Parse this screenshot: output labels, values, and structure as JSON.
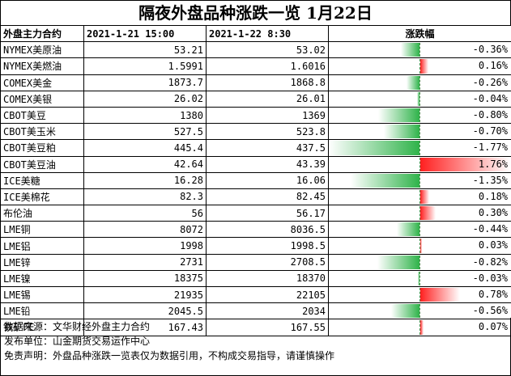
{
  "title": "隔夜外盘品种涨跌一览 1月22日",
  "headers": {
    "name": "外盘主力合约",
    "prev": "2021-1-21 15:00",
    "curr": "2021-1-22 8:30",
    "change": "涨跌幅"
  },
  "colors": {
    "up": "#ff2020",
    "down": "#2fb34a"
  },
  "rows": [
    {
      "name": "NYMEX美原油",
      "prev": "53.21",
      "curr": "53.02",
      "change": "-0.36%",
      "pct": -0.36
    },
    {
      "name": "NYMEX美燃油",
      "prev": "1.5991",
      "curr": "1.6016",
      "change": "0.16%",
      "pct": 0.16
    },
    {
      "name": "COMEX美金",
      "prev": "1873.7",
      "curr": "1868.8",
      "change": "-0.26%",
      "pct": -0.26
    },
    {
      "name": "COMEX美银",
      "prev": "26.02",
      "curr": "26.01",
      "change": "-0.04%",
      "pct": -0.04
    },
    {
      "name": "CBOT美豆",
      "prev": "1380",
      "curr": "1369",
      "change": "-0.80%",
      "pct": -0.8
    },
    {
      "name": "CBOT美玉米",
      "prev": "527.5",
      "curr": "523.8",
      "change": "-0.70%",
      "pct": -0.7
    },
    {
      "name": "CBOT美豆粕",
      "prev": "445.4",
      "curr": "437.5",
      "change": "-1.77%",
      "pct": -1.77
    },
    {
      "name": "CBOT美豆油",
      "prev": "42.64",
      "curr": "43.39",
      "change": "1.76%",
      "pct": 1.76
    },
    {
      "name": "ICE美糖",
      "prev": "16.28",
      "curr": "16.06",
      "change": "-1.35%",
      "pct": -1.35
    },
    {
      "name": "ICE美棉花",
      "prev": "82.3",
      "curr": "82.45",
      "change": "0.18%",
      "pct": 0.18
    },
    {
      "name": "布伦油",
      "prev": "56",
      "curr": "56.17",
      "change": "0.30%",
      "pct": 0.3
    },
    {
      "name": "LME铜",
      "prev": "8072",
      "curr": "8036.5",
      "change": "-0.44%",
      "pct": -0.44
    },
    {
      "name": "LME铝",
      "prev": "1998",
      "curr": "1998.5",
      "change": "0.03%",
      "pct": 0.03
    },
    {
      "name": "LME锌",
      "prev": "2731",
      "curr": "2708.5",
      "change": "-0.82%",
      "pct": -0.82
    },
    {
      "name": "LME镍",
      "prev": "18375",
      "curr": "18370",
      "change": "-0.03%",
      "pct": -0.03
    },
    {
      "name": "LME锡",
      "prev": "21935",
      "curr": "22105",
      "change": "0.78%",
      "pct": 0.78
    },
    {
      "name": "LME铅",
      "prev": "2045.5",
      "curr": "2034",
      "change": "-0.56%",
      "pct": -0.56
    },
    {
      "name": "铁矿FE",
      "prev": "167.43",
      "curr": "167.55",
      "change": "0.07%",
      "pct": 0.07
    }
  ],
  "footer": {
    "source": "数据来源：文华财经外盘主力合约",
    "publisher": "发布单位：山金期货交易运作中心",
    "disclaimer": "免责声明：外盘品种涨跌一览表仅为数据引用，不构成交易指导，请谨慎操作"
  }
}
